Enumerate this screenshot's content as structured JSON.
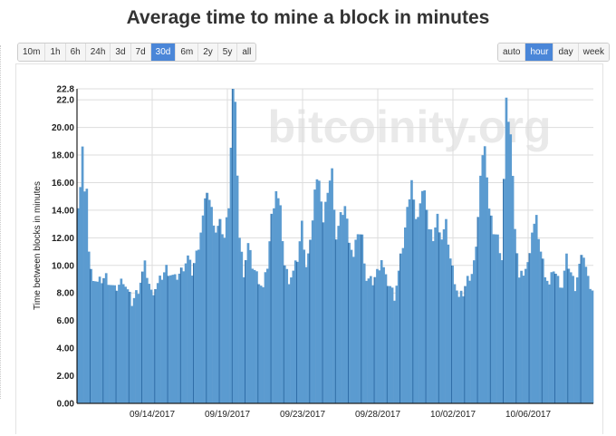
{
  "title": "Average time to mine a block in minutes",
  "range_buttons": [
    {
      "label": "10m",
      "active": false
    },
    {
      "label": "1h",
      "active": false
    },
    {
      "label": "6h",
      "active": false
    },
    {
      "label": "24h",
      "active": false
    },
    {
      "label": "3d",
      "active": false
    },
    {
      "label": "7d",
      "active": false
    },
    {
      "label": "30d",
      "active": true
    },
    {
      "label": "6m",
      "active": false
    },
    {
      "label": "2y",
      "active": false
    },
    {
      "label": "5y",
      "active": false
    },
    {
      "label": "all",
      "active": false
    }
  ],
  "group_buttons": [
    {
      "label": "auto",
      "active": false
    },
    {
      "label": "hour",
      "active": true
    },
    {
      "label": "day",
      "active": false
    },
    {
      "label": "week",
      "active": false
    }
  ],
  "watermark": "bitcoinity.org",
  "colors": {
    "bar_fill": "#5b9bd0",
    "bar_stroke": "#2c6aa3",
    "active_button": "#4a86d8",
    "grid": "#dddddd"
  },
  "chart_data": {
    "type": "bar",
    "ylabel": "Time between blocks in minutes",
    "xlabel": "",
    "ylim": [
      0,
      22.8
    ],
    "y_ticks": [
      "0.00",
      "2.00",
      "4.00",
      "6.00",
      "8.00",
      "10.00",
      "12.00",
      "14.00",
      "16.00",
      "18.00",
      "20.00",
      "22.0",
      "22.8"
    ],
    "x_tick_labels": [
      "09/14/2017",
      "09/19/2017",
      "09/23/2017",
      "09/28/2017",
      "10/02/2017",
      "10/06/2017"
    ],
    "grid": true,
    "legend": "none",
    "series": [
      {
        "anchors": [
          [
            0,
            14.5
          ],
          [
            1,
            15.8
          ],
          [
            2,
            18.5
          ],
          [
            3,
            15.0
          ],
          [
            4,
            15.8
          ],
          [
            5,
            11.0
          ],
          [
            6,
            9.5
          ],
          [
            9,
            8.7
          ],
          [
            13,
            9.2
          ],
          [
            17,
            8.2
          ],
          [
            21,
            9.0
          ],
          [
            25,
            7.3
          ],
          [
            28,
            8.3
          ],
          [
            31,
            10.0
          ],
          [
            34,
            8.0
          ],
          [
            37,
            8.6
          ],
          [
            41,
            9.8
          ],
          [
            45,
            9.0
          ],
          [
            48,
            9.6
          ],
          [
            51,
            10.6
          ],
          [
            53,
            9.5
          ],
          [
            56,
            11.5
          ],
          [
            58,
            13.5
          ],
          [
            60,
            15.5
          ],
          [
            62,
            14.0
          ],
          [
            64,
            12.5
          ],
          [
            66,
            13.0
          ],
          [
            68,
            12.0
          ],
          [
            70,
            14.5
          ],
          [
            72,
            22.8
          ],
          [
            73,
            21.5
          ],
          [
            75,
            12.0
          ],
          [
            77,
            9.5
          ],
          [
            79,
            11.5
          ],
          [
            81,
            10.0
          ],
          [
            84,
            9.0
          ],
          [
            86,
            8.3
          ],
          [
            88,
            10.0
          ],
          [
            90,
            13.5
          ],
          [
            92,
            15.5
          ],
          [
            94,
            14.0
          ],
          [
            96,
            10.0
          ],
          [
            98,
            9.0
          ],
          [
            100,
            9.5
          ],
          [
            102,
            10.5
          ],
          [
            104,
            13.0
          ],
          [
            106,
            10.0
          ],
          [
            108,
            11.5
          ],
          [
            110,
            15.5
          ],
          [
            112,
            16.5
          ],
          [
            114,
            13.0
          ],
          [
            116,
            15.5
          ],
          [
            118,
            16.8
          ],
          [
            120,
            12.0
          ],
          [
            122,
            13.5
          ],
          [
            124,
            14.3
          ],
          [
            126,
            12.0
          ],
          [
            128,
            10.5
          ],
          [
            130,
            12.5
          ],
          [
            132,
            12.0
          ],
          [
            134,
            9.0
          ],
          [
            137,
            8.8
          ],
          [
            139,
            9.5
          ],
          [
            141,
            10.5
          ],
          [
            143,
            9.0
          ],
          [
            145,
            8.5
          ],
          [
            147,
            7.8
          ],
          [
            149,
            9.5
          ],
          [
            151,
            11.5
          ],
          [
            153,
            14.0
          ],
          [
            155,
            16.3
          ],
          [
            157,
            13.0
          ],
          [
            159,
            14.5
          ],
          [
            161,
            15.8
          ],
          [
            163,
            12.5
          ],
          [
            165,
            12.0
          ],
          [
            167,
            13.5
          ],
          [
            169,
            12.0
          ],
          [
            171,
            13.0
          ],
          [
            173,
            10.5
          ],
          [
            175,
            9.0
          ],
          [
            177,
            7.6
          ],
          [
            179,
            8.0
          ],
          [
            181,
            9.0
          ],
          [
            183,
            9.5
          ],
          [
            185,
            11.0
          ],
          [
            187,
            16.5
          ],
          [
            189,
            19.0
          ],
          [
            191,
            14.0
          ],
          [
            193,
            12.5
          ],
          [
            195,
            12.0
          ],
          [
            197,
            10.5
          ],
          [
            199,
            21.8
          ],
          [
            201,
            19.5
          ],
          [
            203,
            13.0
          ],
          [
            205,
            9.0
          ],
          [
            207,
            9.5
          ],
          [
            209,
            10.0
          ],
          [
            211,
            12.5
          ],
          [
            213,
            13.3
          ],
          [
            215,
            11.0
          ],
          [
            217,
            9.5
          ],
          [
            219,
            8.5
          ],
          [
            221,
            9.8
          ],
          [
            223,
            9.0
          ],
          [
            225,
            8.5
          ],
          [
            227,
            10.5
          ],
          [
            229,
            9.5
          ],
          [
            231,
            8.5
          ],
          [
            233,
            10.0
          ],
          [
            235,
            10.8
          ],
          [
            237,
            9.0
          ],
          [
            239,
            8.3
          ]
        ]
      }
    ]
  }
}
